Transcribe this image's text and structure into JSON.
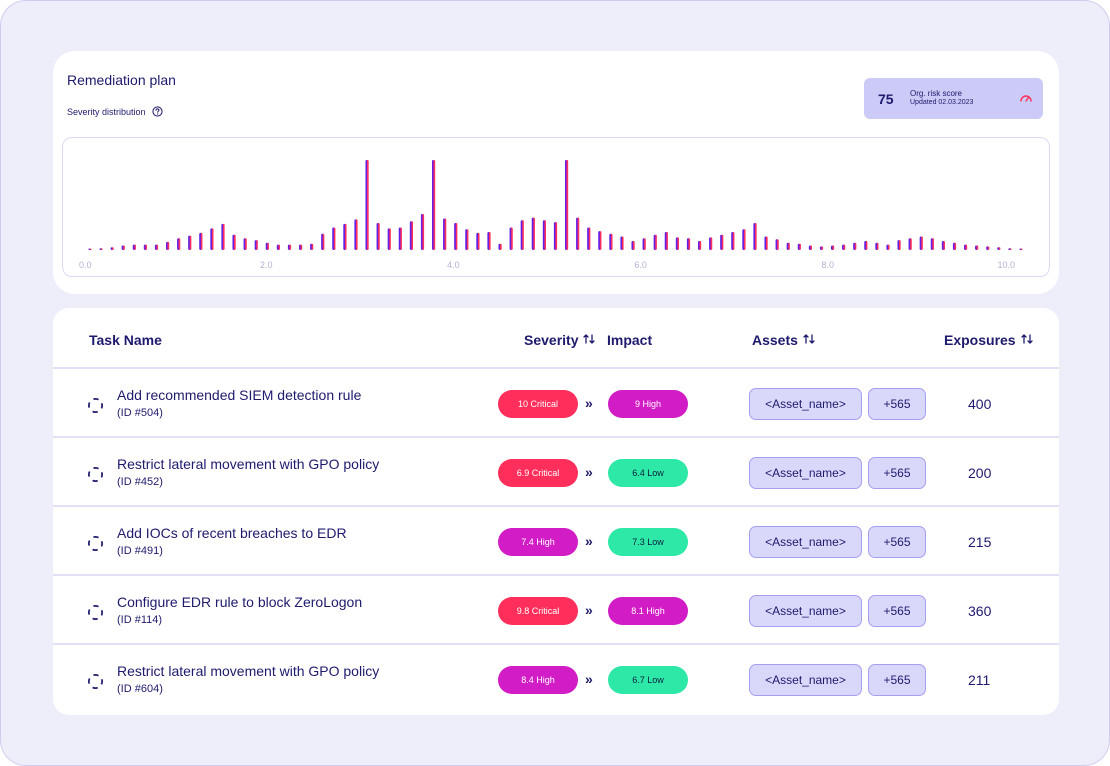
{
  "header": {
    "title": "Remediation plan",
    "distribution_label": "Severity distribution"
  },
  "risk": {
    "score": "75",
    "label": "Org. risk score",
    "updated": "Updated 02.03.2023"
  },
  "chart_data": {
    "type": "bar",
    "xlim": [
      0.0,
      10.0
    ],
    "ylim": [
      0,
      100
    ],
    "x_ticks": [
      "0.0",
      "2.0",
      "4.0",
      "6.0",
      "8.0",
      "10.0"
    ],
    "grid": false,
    "gradient_colors": [
      "#5a1fe8",
      "#6c1fe8",
      "#a12bb3",
      "#ff2e5a"
    ],
    "values": [
      1,
      2,
      3,
      5,
      6,
      6,
      6,
      9,
      13,
      16,
      19,
      24,
      29,
      17,
      13,
      11,
      8,
      6,
      6,
      6,
      7,
      18,
      25,
      29,
      34,
      100,
      30,
      24,
      25,
      32,
      40,
      100,
      35,
      30,
      23,
      19,
      20,
      7,
      25,
      33,
      36,
      33,
      31,
      100,
      36,
      25,
      21,
      18,
      15,
      10,
      13,
      17,
      20,
      14,
      13,
      10,
      14,
      17,
      20,
      23,
      30,
      15,
      12,
      8,
      7,
      5,
      4,
      5,
      6,
      8,
      10,
      8,
      6,
      11,
      13,
      15,
      13,
      10,
      8,
      6,
      5,
      4,
      3,
      2,
      1
    ]
  },
  "table": {
    "columns": {
      "task": "Task Name",
      "severity": "Severity",
      "impact": "Impact",
      "assets": "Assets",
      "exposures": "Exposures"
    },
    "rows": [
      {
        "name": "Add recommended SIEM detection rule",
        "id": "(ID #504)",
        "severity": "10 Critical",
        "severity_level": "critical",
        "impact": "9 High",
        "impact_level": "high",
        "asset": "<Asset_name>",
        "more": "+565",
        "exposures": "400"
      },
      {
        "name": "Restrict lateral movement with GPO policy",
        "id": "(ID #452)",
        "severity": "6.9 Critical",
        "severity_level": "critical",
        "impact": "6.4 Low",
        "impact_level": "low",
        "asset": "<Asset_name>",
        "more": "+565",
        "exposures": "200"
      },
      {
        "name": "Add IOCs of recent breaches to EDR",
        "id": "(ID #491)",
        "severity": "7.4 High",
        "severity_level": "high",
        "impact": "7.3 Low",
        "impact_level": "low",
        "asset": "<Asset_name>",
        "more": "+565",
        "exposures": "215"
      },
      {
        "name": "Configure EDR rule to block ZeroLogon",
        "id": "(ID #114)",
        "severity": "9.8 Critical",
        "severity_level": "critical",
        "impact": "8.1 High",
        "impact_level": "high",
        "asset": "<Asset_name>",
        "more": "+565",
        "exposures": "360"
      },
      {
        "name": "Restrict lateral movement with GPO policy",
        "id": "(ID #604)",
        "severity": "8.4 High",
        "severity_level": "high",
        "impact": "6.7 Low",
        "impact_level": "low",
        "asset": "<Asset_name>",
        "more": "+565",
        "exposures": "211"
      }
    ],
    "arrow_glyph": "»"
  }
}
